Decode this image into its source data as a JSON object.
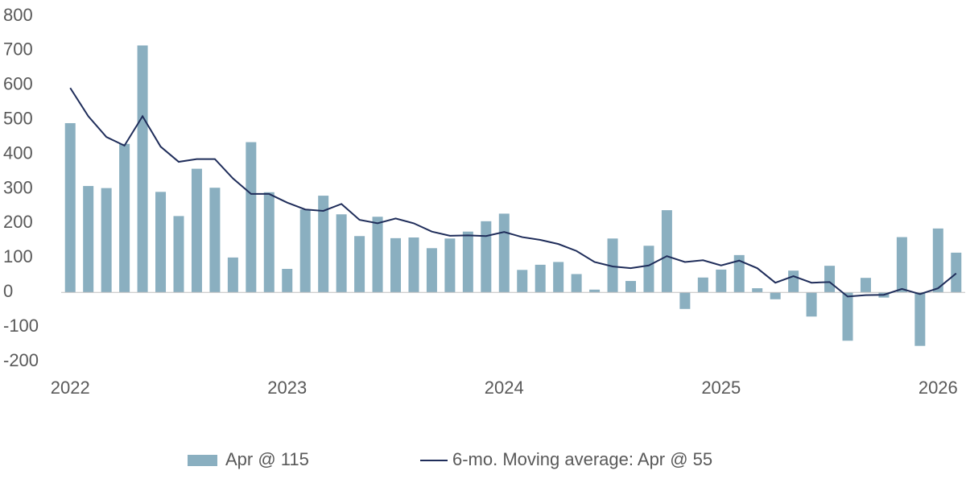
{
  "chart_data": {
    "type": "bar_line",
    "categories": [
      "2022",
      null,
      null,
      null,
      null,
      null,
      null,
      null,
      null,
      null,
      null,
      null,
      "2023",
      null,
      null,
      null,
      null,
      null,
      null,
      null,
      null,
      null,
      null,
      null,
      "2024",
      null,
      null,
      null,
      null,
      null,
      null,
      null,
      null,
      null,
      null,
      null,
      "2025",
      null,
      null,
      null,
      null,
      null,
      null,
      null,
      null,
      null,
      null,
      null,
      "2026",
      null
    ],
    "series": [
      {
        "name": "Apr @ 115",
        "type": "bar",
        "color": "#8aafc0",
        "values": [
          490,
          308,
          302,
          430,
          715,
          291,
          221,
          358,
          303,
          101,
          435,
          290,
          68,
          240,
          280,
          226,
          163,
          219,
          157,
          159,
          128,
          156,
          176,
          206,
          228,
          65,
          80,
          88,
          53,
          8,
          156,
          33,
          135,
          238,
          -48,
          43,
          66,
          108,
          12,
          -20,
          63,
          -70,
          77,
          -140,
          42,
          -15,
          160,
          -155,
          185,
          115
        ]
      },
      {
        "name": "6-mo. Moving average: Apr @ 55",
        "type": "line",
        "color": "#1f2d5a",
        "values": [
          592,
          510,
          450,
          425,
          510,
          422,
          378,
          386,
          386,
          330,
          285,
          285,
          260,
          240,
          236,
          256,
          210,
          200,
          214,
          200,
          176,
          164,
          165,
          163,
          175,
          160,
          152,
          140,
          120,
          88,
          75,
          70,
          78,
          105,
          88,
          93,
          78,
          92,
          70,
          28,
          47,
          28,
          30,
          -12,
          -8,
          -7,
          10,
          -5,
          12,
          55
        ]
      }
    ],
    "ylim": [
      -200,
      800
    ],
    "yticks": [
      -200,
      -100,
      0,
      100,
      200,
      300,
      400,
      500,
      600,
      700,
      800
    ],
    "grid": false,
    "legend": "bottom"
  }
}
